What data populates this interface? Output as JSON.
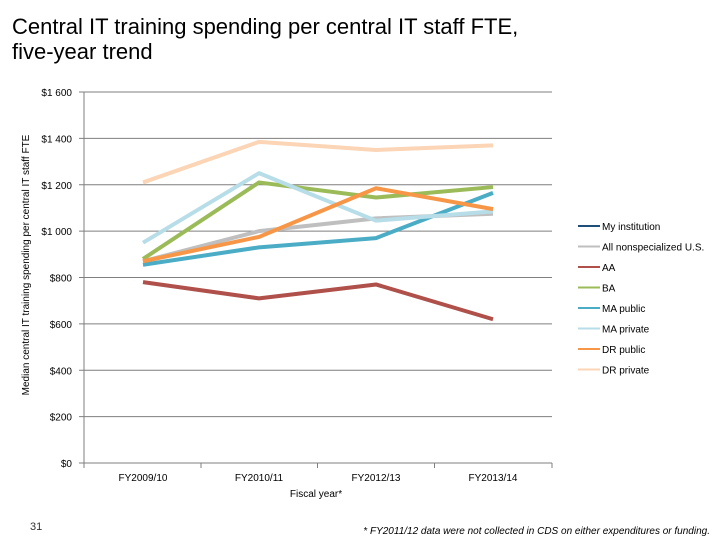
{
  "title_lines": [
    "Central IT training spending per central IT staff FTE,",
    "five-year trend"
  ],
  "page_number": "31",
  "footnote": "* FY2011/12 data were not collected in CDS on either expenditures or funding.",
  "chart_data": {
    "type": "line",
    "title": "",
    "xlabel": "Fiscal year*",
    "ylabel": "Median central IT training spending per central IT staff FTE",
    "categories": [
      "FY2009/10",
      "FY2010/11",
      "FY2012/13",
      "FY2013/14"
    ],
    "ylim": [
      0,
      1600
    ],
    "yticks": [
      0,
      200,
      400,
      600,
      800,
      1000,
      1200,
      1400,
      1600
    ],
    "ytick_labels": [
      "$0",
      "$200",
      "$400",
      "$600",
      "$800",
      "$1 000",
      "$1 200",
      "$1 400",
      "$1 600"
    ],
    "grid": true,
    "legend_position": "right",
    "series": [
      {
        "name": "My institution",
        "color": "#1f4e79",
        "values": [
          null,
          null,
          null,
          null
        ]
      },
      {
        "name": "All nonspecialized U.S.",
        "color": "#bfbfbf",
        "values": [
          870,
          1000,
          1055,
          1075
        ]
      },
      {
        "name": "AA",
        "color": "#b0504a",
        "values": [
          780,
          710,
          770,
          620
        ]
      },
      {
        "name": "BA",
        "color": "#9bbb59",
        "values": [
          880,
          1210,
          1145,
          1190
        ]
      },
      {
        "name": "MA public",
        "color": "#4bacc6",
        "values": [
          855,
          930,
          970,
          1165
        ]
      },
      {
        "name": "MA private",
        "color": "#b7dde8",
        "values": [
          950,
          1250,
          1045,
          1085
        ]
      },
      {
        "name": "DR public",
        "color": "#f79646",
        "values": [
          870,
          975,
          1185,
          1095
        ]
      },
      {
        "name": "DR private",
        "color": "#fbd5b5",
        "values": [
          1210,
          1385,
          1350,
          1370
        ]
      }
    ]
  }
}
